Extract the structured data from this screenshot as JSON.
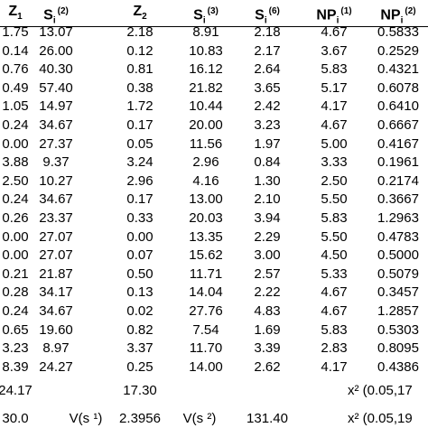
{
  "table": {
    "header": [
      {
        "main": "Z",
        "sub": "1"
      },
      {
        "main": "S",
        "sub": "i",
        "sup": "(2)"
      },
      {
        "main": "Z",
        "sub": "2"
      },
      {
        "main": "S",
        "sub": "i",
        "sup": "(3)"
      },
      {
        "main": "S",
        "sub": "i",
        "sup": "(6)"
      },
      {
        "main": "NP",
        "sub": "i",
        "sup": "(1)"
      },
      {
        "main": "NP",
        "sub": "i",
        "sup": "(2)"
      }
    ],
    "rows": [
      [
        "1.75",
        "13.07",
        "2.18",
        "8.91",
        "2.18",
        "4.67",
        "0.5833"
      ],
      [
        "0.14",
        "26.00",
        "0.12",
        "10.83",
        "2.17",
        "3.67",
        "0.2529"
      ],
      [
        "0.76",
        "40.30",
        "0.81",
        "16.12",
        "2.64",
        "5.83",
        "0.4321"
      ],
      [
        "0.49",
        "57.40",
        "0.38",
        "21.82",
        "3.65",
        "5.17",
        "0.6078"
      ],
      [
        "1.05",
        "14.97",
        "1.72",
        "10.44",
        "2.42",
        "4.17",
        "0.6410"
      ],
      [
        "0.24",
        "34.67",
        "0.17",
        "20.00",
        "3.23",
        "4.67",
        "0.6667"
      ],
      [
        "0.00",
        "27.37",
        "0.05",
        "11.56",
        "1.97",
        "5.00",
        "0.4167"
      ],
      [
        "3.88",
        "9.37",
        "3.24",
        "2.96",
        "0.84",
        "3.33",
        "0.1961"
      ],
      [
        "2.50",
        "10.27",
        "2.96",
        "4.16",
        "1.30",
        "2.50",
        "0.2174"
      ],
      [
        "0.24",
        "34.67",
        "0.17",
        "13.00",
        "2.10",
        "5.50",
        "0.3667"
      ],
      [
        "0.26",
        "23.37",
        "0.33",
        "20.03",
        "3.94",
        "5.83",
        "1.2963"
      ],
      [
        "0.00",
        "27.07",
        "0.00",
        "13.35",
        "2.29",
        "5.50",
        "0.4783"
      ],
      [
        "0.00",
        "27.07",
        "0.07",
        "15.62",
        "3.00",
        "4.50",
        "0.5000"
      ],
      [
        "0.21",
        "21.87",
        "0.50",
        "11.71",
        "2.57",
        "5.33",
        "0.5079"
      ],
      [
        "0.28",
        "34.17",
        "0.13",
        "14.04",
        "2.22",
        "4.67",
        "0.3457"
      ],
      [
        "0.24",
        "34.67",
        "0.02",
        "27.76",
        "4.83",
        "4.67",
        "1.2857"
      ],
      [
        "0.65",
        "19.60",
        "0.82",
        "7.54",
        "1.69",
        "5.83",
        "0.5303"
      ],
      [
        "3.23",
        "8.97",
        "3.37",
        "11.70",
        "3.39",
        "2.83",
        "0.8095"
      ],
      [
        "8.39",
        "24.27",
        "0.25",
        "14.00",
        "2.62",
        "4.17",
        "0.4386"
      ]
    ],
    "footer": [
      [
        {
          "col": 0,
          "text": "24.17"
        },
        {
          "col": 2,
          "text": "17.30"
        },
        {
          "col": 6,
          "text": "x² (0.05,17"
        }
      ],
      [
        {
          "col": 0,
          "text": "30.0"
        },
        {
          "col": 1,
          "text": "V(s ¹)"
        },
        {
          "col": 2,
          "text": "2.3956"
        },
        {
          "col": 3,
          "text": "V(s ²)"
        },
        {
          "col": 4,
          "text": "131.40"
        },
        {
          "col": 6,
          "text": "x² (0.05,19"
        }
      ]
    ]
  }
}
